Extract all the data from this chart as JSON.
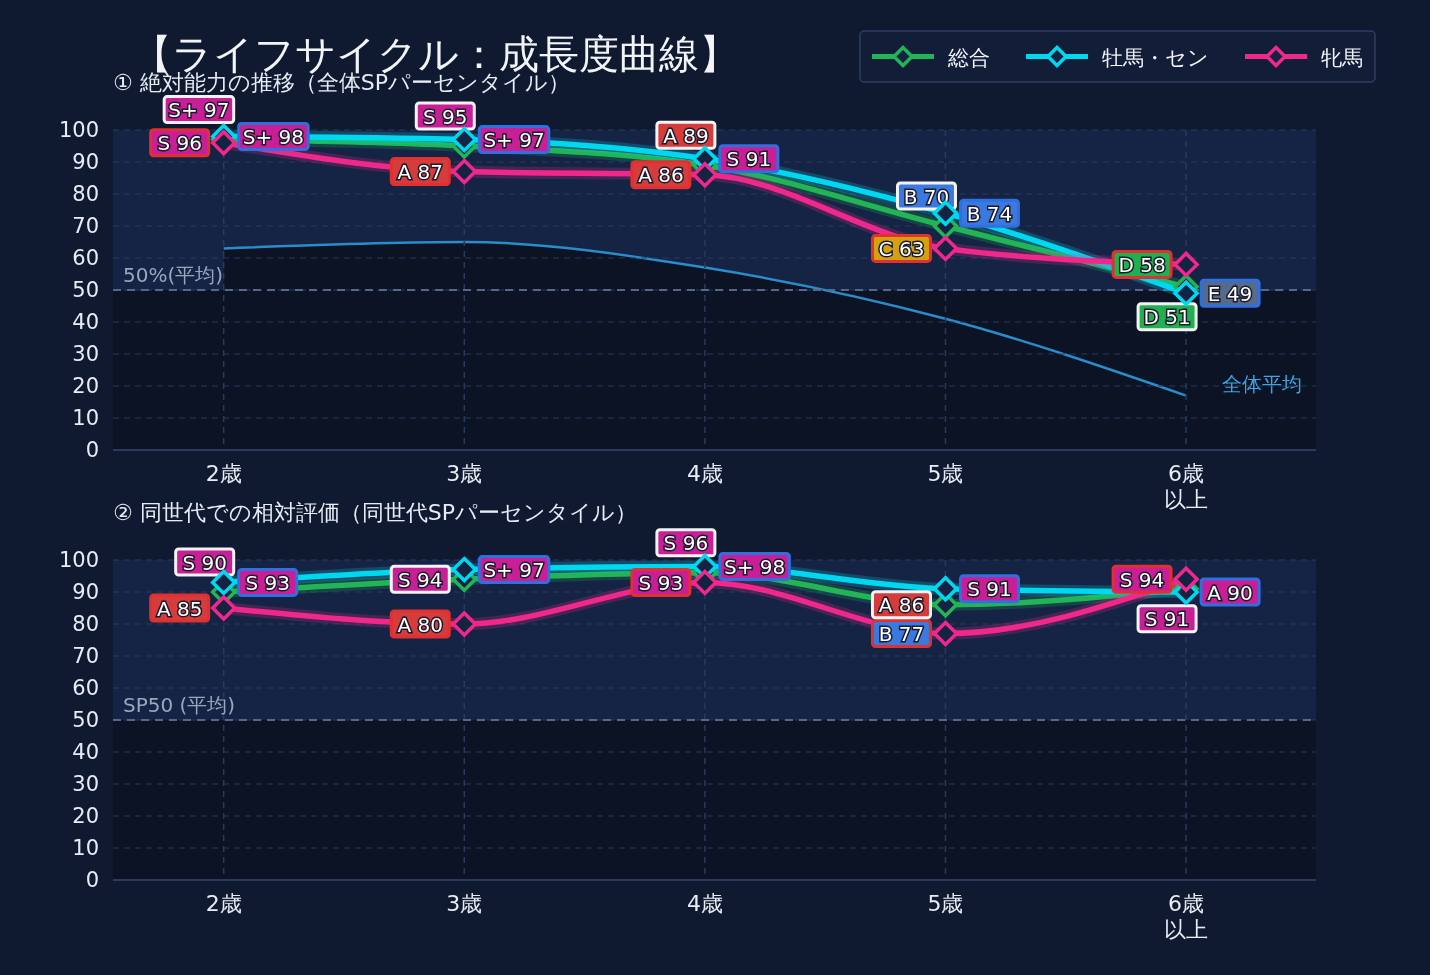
{
  "chart_data": [
    {
      "type": "line",
      "title": "【ライフサイクル：成長度曲線】",
      "subtitle": "① 絶対能力の推移（全体SPパーセンタイル）",
      "categories": [
        "2歳",
        "3歳",
        "4歳",
        "5歳",
        "6歳以上"
      ],
      "ylim": [
        0,
        100
      ],
      "yticks": [
        0,
        10,
        20,
        30,
        40,
        50,
        60,
        70,
        80,
        90,
        100
      ],
      "grid": true,
      "marker": "diamond",
      "legend": "top right",
      "ref_lines": [
        {
          "axis": "y",
          "value": 50,
          "label": "50%(平均)",
          "color": "#56678a",
          "line_style": "dashed"
        }
      ],
      "bands": [
        {
          "axis": "y",
          "from": 50,
          "to": 100,
          "color": "#152445"
        }
      ],
      "series": [
        {
          "name": "総合",
          "color": "#22b455",
          "values": [
            97,
            95,
            89,
            70,
            51
          ],
          "value_labels": [
            "S+ 97",
            "S 95",
            "A 89",
            "B 70",
            "D 51"
          ]
        },
        {
          "name": "牡馬・セン",
          "color": "#00d8f0",
          "values": [
            98,
            97,
            91,
            74,
            49
          ],
          "value_labels": [
            "S+ 98",
            "S+ 97",
            "S 91",
            "B 74",
            "E 49"
          ]
        },
        {
          "name": "牝馬",
          "color": "#f0288c",
          "values": [
            96,
            87,
            86,
            63,
            58
          ],
          "value_labels": [
            "S 96",
            "A 87",
            "A 86",
            "C 63",
            "D 58"
          ]
        },
        {
          "name": "全体平均",
          "type": "area",
          "marker": "none",
          "color": "#2a8cc8",
          "values": [
            63,
            65,
            57,
            41,
            17
          ]
        }
      ]
    },
    {
      "type": "line",
      "title": "② 同世代での相対評価（同世代SPパーセンタイル）",
      "categories": [
        "2歳",
        "3歳",
        "4歳",
        "5歳",
        "6歳以上"
      ],
      "ylim": [
        0,
        100
      ],
      "yticks": [
        0,
        10,
        20,
        30,
        40,
        50,
        60,
        70,
        80,
        90,
        100
      ],
      "grid": true,
      "marker": "diamond",
      "ref_lines": [
        {
          "axis": "y",
          "value": 50,
          "label": "SP50 (平均)",
          "color": "#56678a",
          "line_style": "dashed"
        }
      ],
      "bands": [
        {
          "axis": "y",
          "from": 50,
          "to": 100,
          "color": "#152445"
        }
      ],
      "series": [
        {
          "name": "総合",
          "color": "#22b455",
          "values": [
            90,
            94,
            96,
            86,
            91
          ],
          "value_labels": [
            "S 90",
            "S 94",
            "S 96",
            "A 86",
            "S 91"
          ]
        },
        {
          "name": "牡馬・セン",
          "color": "#00d8f0",
          "values": [
            93,
            97,
            98,
            91,
            90
          ],
          "value_labels": [
            "S 93",
            "S+ 97",
            "S+ 98",
            "S 91",
            "A 90"
          ]
        },
        {
          "name": "牝馬",
          "color": "#f0288c",
          "values": [
            85,
            80,
            93,
            77,
            94
          ],
          "value_labels": [
            "A 85",
            "A 80",
            "S 93",
            "B 77",
            "S 94"
          ]
        }
      ]
    }
  ]
}
